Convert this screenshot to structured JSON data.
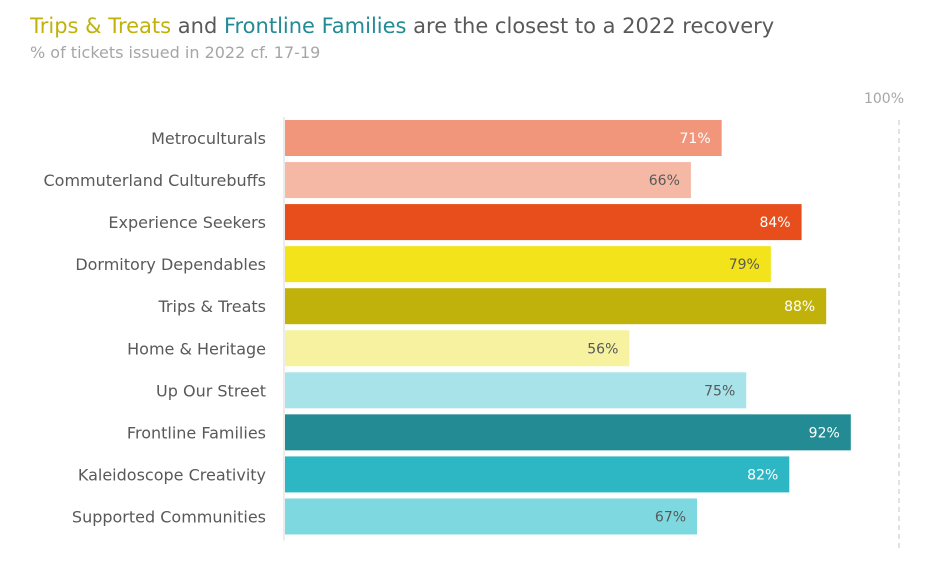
{
  "title": {
    "part1": "Trips & Treats",
    "part2": " and ",
    "part3": "Frontline Families",
    "part4": " are the closest to a 2022 recovery"
  },
  "subtitle": "% of tickets issued in 2022 cf. 17-19",
  "colors": {
    "title_highlight_1": "#c0b20b",
    "title_highlight_2": "#228b94"
  },
  "chart_data": {
    "type": "bar",
    "orientation": "horizontal",
    "categories": [
      "Metroculturals",
      "Commuterland Culturebuffs",
      "Experience Seekers",
      "Dormitory Dependables",
      "Trips & Treats",
      "Home & Heritage",
      "Up Our Street",
      "Frontline Families",
      "Kaleidoscope Creativity",
      "Supported Communities"
    ],
    "values": [
      71,
      66,
      84,
      79,
      88,
      56,
      75,
      92,
      82,
      67
    ],
    "value_labels": [
      "71%",
      "66%",
      "84%",
      "79%",
      "88%",
      "56%",
      "75%",
      "92%",
      "82%",
      "67%"
    ],
    "bar_colors": [
      "#f2967b",
      "#f5b8a5",
      "#e84e1b",
      "#f2e31b",
      "#c0b20b",
      "#f7f2a0",
      "#a8e3ea",
      "#228b94",
      "#2db7c5",
      "#7ed8e0"
    ],
    "label_colors": [
      "#ffffff",
      "#595959",
      "#ffffff",
      "#595959",
      "#ffffff",
      "#595959",
      "#595959",
      "#ffffff",
      "#ffffff",
      "#595959"
    ],
    "reference_line": {
      "value": 100,
      "label": "100%"
    },
    "xlim": [
      0,
      100
    ]
  }
}
